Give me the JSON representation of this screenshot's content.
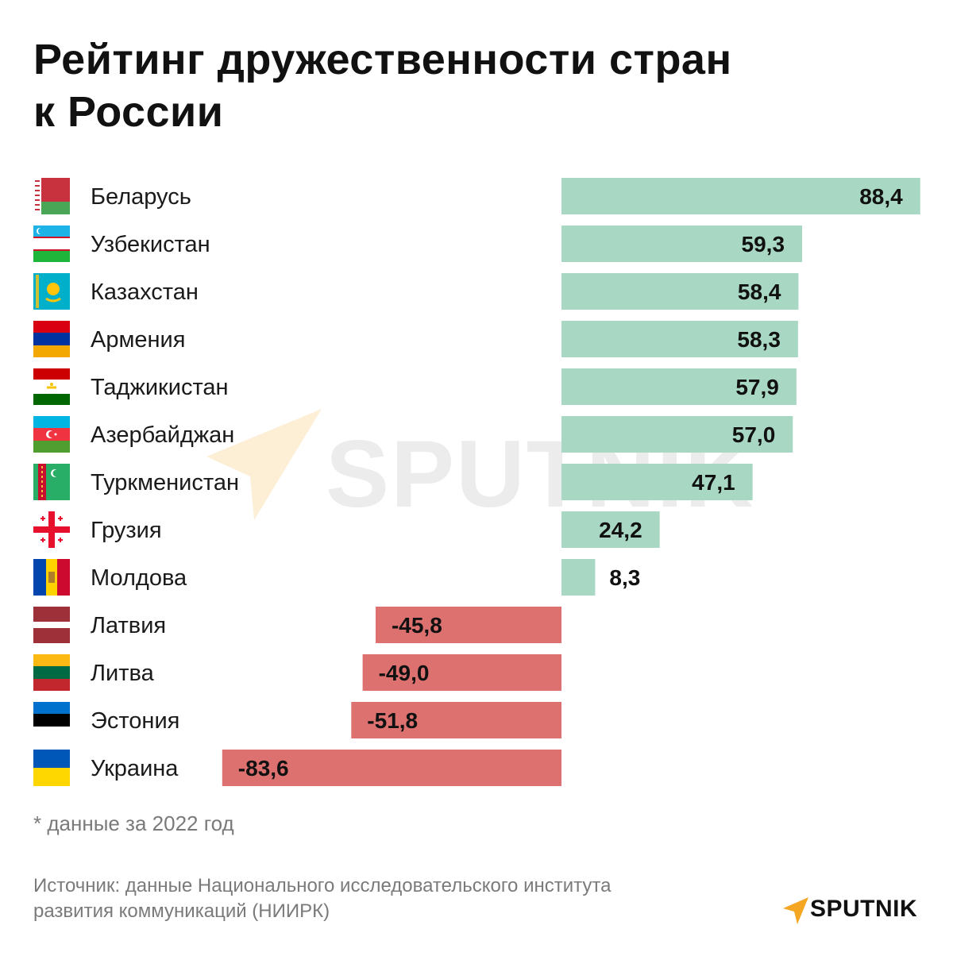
{
  "title_line1": "Рейтинг дружественности стран",
  "title_line2": "к России",
  "footnote": "* данные за 2022 год",
  "source_line1": "Источник: данные Национального исследовательского института",
  "source_line2": "развития коммуникаций (НИИРК)",
  "logo_text": "SPUTNIK",
  "watermark_text": "SPUTNIK",
  "colors": {
    "positive": "#a8d8c4",
    "negative": "#dc7170",
    "accent": "#f5a623"
  },
  "chart_data": {
    "type": "bar",
    "orientation": "horizontal",
    "categories": [
      "Беларусь",
      "Узбекистан",
      "Казахстан",
      "Армения",
      "Таджикистан",
      "Азербайджан",
      "Туркменистан",
      "Грузия",
      "Молдова",
      "Латвия",
      "Литва",
      "Эстония",
      "Украина"
    ],
    "values": [
      88.4,
      59.3,
      58.4,
      58.3,
      57.9,
      57.0,
      47.1,
      24.2,
      8.3,
      -45.8,
      -49.0,
      -51.8,
      -83.6
    ],
    "value_labels": [
      "88,4",
      "59,3",
      "58,4",
      "58,3",
      "57,9",
      "57,0",
      "47,1",
      "24,2",
      "8,3",
      "-45,8",
      "-49,0",
      "-51,8",
      "-83,6"
    ],
    "flags": [
      "belarus-flag",
      "uzbekistan-flag",
      "kazakhstan-flag",
      "armenia-flag",
      "tajikistan-flag",
      "azerbaijan-flag",
      "turkmenistan-flag",
      "georgia-flag",
      "moldova-flag",
      "latvia-flag",
      "lithuania-flag",
      "estonia-flag",
      "ukraine-flag"
    ],
    "xlim": [
      -83.6,
      88.4
    ],
    "grid": false,
    "legend": "none"
  }
}
